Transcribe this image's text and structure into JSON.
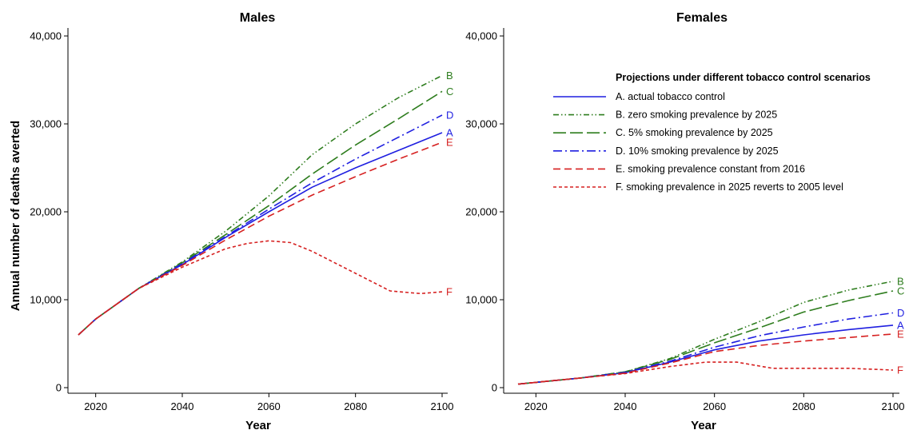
{
  "chart_data": {
    "type": "line",
    "ylabel": "Annual number of deaths averted",
    "xlabel": "Year",
    "legend": {
      "title": "Projections under different tobacco control scenarios",
      "placement": "top-right of Females panel",
      "entries": [
        {
          "key": "A",
          "label": "A. actual tobacco control",
          "color": "#1f1fe0",
          "dash": "solid"
        },
        {
          "key": "B",
          "label": "B. zero smoking prevalence by 2025",
          "color": "#2e7d1e",
          "dash": "dashdotdot"
        },
        {
          "key": "C",
          "label": "C. 5% smoking prevalence by 2025",
          "color": "#2e7d1e",
          "dash": "longdash"
        },
        {
          "key": "D",
          "label": "D. 10% smoking prevalence by 2025",
          "color": "#1f1fe0",
          "dash": "dashdot"
        },
        {
          "key": "E",
          "label": "E. smoking prevalence constant from 2016",
          "color": "#d62020",
          "dash": "dash"
        },
        {
          "key": "F",
          "label": "F. smoking prevalence in 2025 reverts to 2005 level",
          "color": "#d62020",
          "dash": "shortdash"
        }
      ]
    },
    "panels": [
      {
        "title": "Males",
        "xlim": [
          2016,
          2100
        ],
        "ylim": [
          0,
          40000
        ],
        "xticks": [
          2020,
          2040,
          2060,
          2080,
          2100
        ],
        "yticks": [
          0,
          10000,
          20000,
          30000,
          40000
        ],
        "ytick_labels": [
          "0",
          "10,000",
          "20,000",
          "30,000",
          "40,000"
        ],
        "series": [
          {
            "key": "A",
            "x": [
              2016,
              2020,
              2030,
              2040,
              2050,
              2060,
              2070,
              2080,
              2090,
              2100
            ],
            "y": [
              6000,
              7800,
              11300,
              14000,
              17100,
              20000,
              22800,
              25000,
              27000,
              29000
            ]
          },
          {
            "key": "B",
            "x": [
              2016,
              2020,
              2030,
              2040,
              2050,
              2060,
              2070,
              2080,
              2090,
              2100
            ],
            "y": [
              6000,
              7800,
              11300,
              14300,
              17800,
              21800,
              26500,
              30000,
              33000,
              35500
            ]
          },
          {
            "key": "C",
            "x": [
              2016,
              2020,
              2030,
              2040,
              2050,
              2060,
              2070,
              2080,
              2090,
              2100
            ],
            "y": [
              6000,
              7800,
              11300,
              14200,
              17400,
              20700,
              24300,
              27600,
              30600,
              33700
            ]
          },
          {
            "key": "D",
            "x": [
              2016,
              2020,
              2030,
              2040,
              2050,
              2060,
              2070,
              2080,
              2090,
              2100
            ],
            "y": [
              6000,
              7800,
              11300,
              14100,
              17200,
              20300,
              23300,
              26000,
              28500,
              31000
            ]
          },
          {
            "key": "E",
            "x": [
              2016,
              2020,
              2030,
              2040,
              2050,
              2060,
              2070,
              2080,
              2090,
              2100
            ],
            "y": [
              6000,
              7800,
              11300,
              13900,
              16800,
              19500,
              21900,
              24000,
              26000,
              27900
            ]
          },
          {
            "key": "F",
            "x": [
              2016,
              2020,
              2030,
              2040,
              2050,
              2055,
              2060,
              2065,
              2070,
              2080,
              2088,
              2095,
              2100
            ],
            "y": [
              6000,
              7800,
              11300,
              13700,
              15800,
              16400,
              16700,
              16500,
              15500,
              13000,
              11000,
              10700,
              10900
            ]
          }
        ]
      },
      {
        "title": "Females",
        "xlim": [
          2016,
          2100
        ],
        "ylim": [
          0,
          40000
        ],
        "xticks": [
          2020,
          2040,
          2060,
          2080,
          2100
        ],
        "yticks": [
          0,
          10000,
          20000,
          30000,
          40000
        ],
        "ytick_labels": [
          "0",
          "10,000",
          "20,000",
          "30,000",
          "40,000"
        ],
        "series": [
          {
            "key": "A",
            "x": [
              2016,
              2020,
              2030,
              2040,
              2050,
              2060,
              2070,
              2080,
              2090,
              2100
            ],
            "y": [
              400,
              600,
              1100,
              1700,
              2900,
              4300,
              5300,
              6000,
              6600,
              7100
            ]
          },
          {
            "key": "B",
            "x": [
              2016,
              2020,
              2030,
              2040,
              2050,
              2060,
              2070,
              2080,
              2090,
              2100
            ],
            "y": [
              400,
              600,
              1100,
              1800,
              3300,
              5500,
              7500,
              9700,
              11100,
              12100
            ]
          },
          {
            "key": "C",
            "x": [
              2016,
              2020,
              2030,
              2040,
              2050,
              2060,
              2070,
              2080,
              2090,
              2100
            ],
            "y": [
              400,
              600,
              1100,
              1800,
              3200,
              5100,
              6800,
              8600,
              9900,
              11000
            ]
          },
          {
            "key": "D",
            "x": [
              2016,
              2020,
              2030,
              2040,
              2050,
              2060,
              2070,
              2080,
              2090,
              2100
            ],
            "y": [
              400,
              600,
              1100,
              1750,
              3000,
              4600,
              5900,
              6900,
              7800,
              8500
            ]
          },
          {
            "key": "E",
            "x": [
              2016,
              2020,
              2030,
              2040,
              2050,
              2060,
              2070,
              2080,
              2090,
              2100
            ],
            "y": [
              400,
              600,
              1100,
              1650,
              2800,
              4100,
              4800,
              5300,
              5700,
              6100
            ]
          },
          {
            "key": "F",
            "x": [
              2016,
              2020,
              2030,
              2040,
              2050,
              2058,
              2065,
              2073,
              2080,
              2090,
              2100
            ],
            "y": [
              400,
              600,
              1100,
              1600,
              2400,
              2900,
              2900,
              2200,
              2200,
              2200,
              2000
            ]
          }
        ]
      }
    ]
  }
}
